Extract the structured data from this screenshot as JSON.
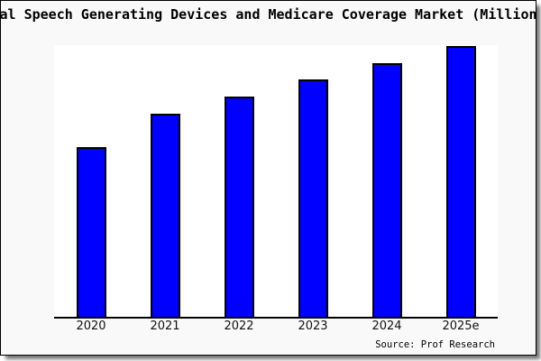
{
  "title": "al Speech Generating Devices and Medicare Coverage Market (Million",
  "source": "Source: Prof Research",
  "colors": {
    "bar_fill": "#0000FF",
    "bar_border": "#000000",
    "plot_background": "#FFFFFF",
    "page_background": "#F9F9F9",
    "axis": "#000000",
    "title_text": "#000000"
  },
  "chart_data": {
    "type": "bar",
    "title": "al Speech Generating Devices and Medicare Coverage Market (Million",
    "categories": [
      "2020",
      "2021",
      "2022",
      "2023",
      "2024",
      "2025e"
    ],
    "values": [
      62.7,
      75.0,
      81.3,
      87.7,
      93.7,
      100
    ],
    "xlabel": "",
    "ylabel": "",
    "ylim": [
      0,
      100
    ],
    "grid": false,
    "legend": false,
    "y_axis_ticks_visible": false,
    "values_note": "No numeric y-axis shown in image; values are bar heights as percent of tallest bar (2025e = 100)"
  }
}
